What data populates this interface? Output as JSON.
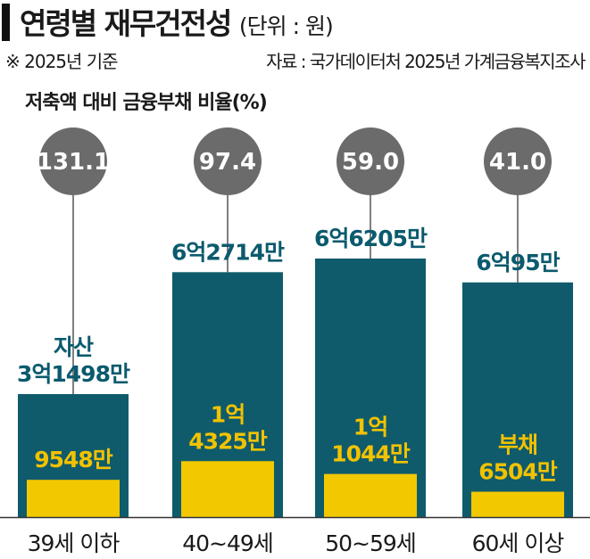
{
  "title": "연령별 재무건전성",
  "unit": "(단위 : 원)",
  "note": "※ 2025년 기준",
  "source": "자료 : 국가데이터처 2025년 가계금융복지조사",
  "colors": {
    "asset": "#0f5b6c",
    "debt": "#f2c800",
    "bubble": "#6b6b6b",
    "asset_label": "#0b5a6e",
    "debt_label": "#f2c200"
  },
  "chart_data": {
    "type": "bar",
    "title": "연령별 재무건전성",
    "subtitle": "저축액 대비 금융부채 비율(%)",
    "categories": [
      "39세 이하",
      "40~49세",
      "50~59세",
      "60세 이상"
    ],
    "ratio_values": [
      131.1,
      97.4,
      59.0,
      41.0
    ],
    "ratio_labels": [
      "131.1",
      "97.4",
      "59.0",
      "41.0"
    ],
    "series": [
      {
        "name": "자산",
        "values": [
          314980000,
          627140000,
          662050000,
          600950000
        ],
        "labels": [
          [
            "자산",
            "3억1498만"
          ],
          [
            "6억2714만"
          ],
          [
            "6억6205만"
          ],
          [
            "6억95만"
          ]
        ]
      },
      {
        "name": "부채",
        "values": [
          95480000,
          143250000,
          110440000,
          65040000
        ],
        "labels": [
          [
            "9548만"
          ],
          [
            "1억",
            "4325만"
          ],
          [
            "1억",
            "1044만"
          ],
          [
            "부채",
            "6504만"
          ]
        ]
      }
    ]
  }
}
